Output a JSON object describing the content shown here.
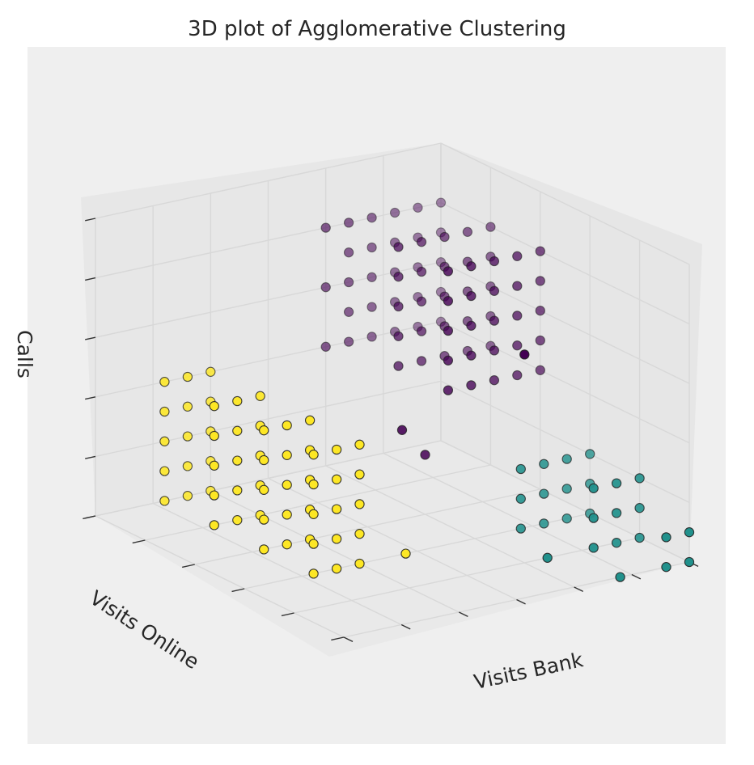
{
  "chart_data": {
    "type": "scatter",
    "projection": "3d",
    "title": "3D plot of Agglomerative Clustering",
    "xlabel": "Visits Bank",
    "ylabel": "Visits Online",
    "zlabel": "Calls",
    "xlim": [
      0,
      5
    ],
    "ylim": [
      0,
      15
    ],
    "zlim": [
      0,
      10
    ],
    "grid": true,
    "tick_labels_visible": false,
    "colormap": "viridis",
    "colors": {
      "cluster_0": "#440154",
      "cluster_1": "#21918c",
      "cluster_2": "#fde725",
      "background": "#efefef",
      "pane_floor": "#e9e9e9",
      "pane_back": "#e7e7e7",
      "grid": "#d8d8d8"
    },
    "series": [
      {
        "cluster": 0,
        "points": [
          [
            0,
            0,
            4
          ],
          [
            0,
            0,
            5
          ],
          [
            0,
            0,
            6
          ],
          [
            0,
            0,
            7
          ],
          [
            0,
            0,
            8
          ],
          [
            0,
            1,
            4
          ],
          [
            0,
            1,
            5
          ],
          [
            0,
            1,
            6
          ],
          [
            0,
            1,
            7
          ],
          [
            0,
            1,
            8
          ],
          [
            0,
            2,
            4
          ],
          [
            0,
            2,
            5
          ],
          [
            0,
            2,
            6
          ],
          [
            0,
            2,
            7
          ],
          [
            0,
            2,
            8
          ],
          [
            0,
            3,
            4
          ],
          [
            0,
            3,
            5
          ],
          [
            0,
            3,
            6
          ],
          [
            0,
            3,
            7
          ],
          [
            0,
            3,
            8
          ],
          [
            0,
            4,
            4
          ],
          [
            0,
            4,
            5
          ],
          [
            0,
            4,
            6
          ],
          [
            0,
            4,
            7
          ],
          [
            0,
            4,
            8
          ],
          [
            0,
            5,
            4
          ],
          [
            0,
            5,
            6
          ],
          [
            0,
            5,
            8
          ],
          [
            1,
            0,
            4
          ],
          [
            1,
            0,
            5
          ],
          [
            1,
            0,
            6
          ],
          [
            1,
            0,
            7
          ],
          [
            1,
            0,
            8
          ],
          [
            1,
            1,
            4
          ],
          [
            1,
            1,
            5
          ],
          [
            1,
            1,
            6
          ],
          [
            1,
            1,
            7
          ],
          [
            1,
            1,
            8
          ],
          [
            1,
            2,
            4
          ],
          [
            1,
            2,
            5
          ],
          [
            1,
            2,
            6
          ],
          [
            1,
            2,
            7
          ],
          [
            1,
            2,
            8
          ],
          [
            1,
            3,
            4
          ],
          [
            1,
            3,
            5
          ],
          [
            1,
            3,
            6
          ],
          [
            1,
            3,
            7
          ],
          [
            1,
            3,
            8
          ],
          [
            1,
            4,
            4
          ],
          [
            1,
            4,
            5
          ],
          [
            1,
            4,
            6
          ],
          [
            1,
            4,
            7
          ],
          [
            1,
            4,
            8
          ],
          [
            2,
            0,
            4
          ],
          [
            2,
            0,
            5
          ],
          [
            2,
            0,
            6
          ],
          [
            2,
            0,
            7
          ],
          [
            2,
            0,
            8
          ],
          [
            2,
            1,
            4
          ],
          [
            2,
            1,
            5
          ],
          [
            2,
            1,
            6
          ],
          [
            2,
            1,
            7
          ],
          [
            2,
            1,
            8
          ],
          [
            2,
            2,
            4
          ],
          [
            2,
            2,
            5
          ],
          [
            2,
            2,
            6
          ],
          [
            2,
            2,
            7
          ],
          [
            2,
            2,
            8
          ],
          [
            2,
            3,
            4
          ],
          [
            2,
            3,
            5
          ],
          [
            2,
            3,
            6
          ],
          [
            2,
            3,
            7
          ],
          [
            2,
            3,
            8
          ],
          [
            2,
            4,
            4
          ],
          [
            2,
            4,
            5
          ],
          [
            2,
            4,
            6
          ],
          [
            2,
            4,
            7
          ],
          [
            2,
            4,
            8
          ],
          [
            2,
            5,
            2
          ],
          [
            2,
            6,
            3
          ],
          [
            4,
            5,
            7
          ]
        ]
      },
      {
        "cluster": 1,
        "points": [
          [
            3,
            0,
            0
          ],
          [
            3,
            0,
            1
          ],
          [
            3,
            0,
            2
          ],
          [
            3,
            1,
            0
          ],
          [
            3,
            1,
            1
          ],
          [
            3,
            1,
            2
          ],
          [
            3,
            2,
            0
          ],
          [
            3,
            2,
            1
          ],
          [
            3,
            2,
            2
          ],
          [
            3,
            3,
            0
          ],
          [
            3,
            3,
            1
          ],
          [
            3,
            3,
            2
          ],
          [
            4,
            0,
            0
          ],
          [
            4,
            0,
            1
          ],
          [
            4,
            0,
            2
          ],
          [
            4,
            1,
            0
          ],
          [
            4,
            1,
            1
          ],
          [
            4,
            1,
            2
          ],
          [
            4,
            2,
            0
          ],
          [
            4,
            2,
            1
          ],
          [
            4,
            2,
            2
          ],
          [
            5,
            0,
            0
          ],
          [
            5,
            0,
            1
          ],
          [
            5,
            1,
            0
          ],
          [
            5,
            1,
            1
          ],
          [
            4,
            4,
            0
          ],
          [
            5,
            3,
            0
          ]
        ]
      },
      {
        "cluster": 2,
        "points": [
          [
            0,
            10,
            0
          ],
          [
            0,
            10,
            1
          ],
          [
            0,
            10,
            2
          ],
          [
            0,
            10,
            3
          ],
          [
            0,
            10,
            4
          ],
          [
            0,
            11,
            0
          ],
          [
            0,
            11,
            1
          ],
          [
            0,
            11,
            2
          ],
          [
            0,
            11,
            3
          ],
          [
            0,
            11,
            4
          ],
          [
            0,
            12,
            0
          ],
          [
            0,
            12,
            1
          ],
          [
            0,
            12,
            2
          ],
          [
            0,
            12,
            3
          ],
          [
            0,
            12,
            4
          ],
          [
            1,
            10,
            0
          ],
          [
            1,
            10,
            1
          ],
          [
            1,
            10,
            2
          ],
          [
            1,
            10,
            3
          ],
          [
            1,
            10,
            4
          ],
          [
            1,
            11,
            0
          ],
          [
            1,
            11,
            1
          ],
          [
            1,
            11,
            2
          ],
          [
            1,
            11,
            3
          ],
          [
            1,
            11,
            4
          ],
          [
            1,
            12,
            0
          ],
          [
            1,
            12,
            1
          ],
          [
            1,
            12,
            2
          ],
          [
            1,
            12,
            3
          ],
          [
            1,
            12,
            4
          ],
          [
            2,
            10,
            0
          ],
          [
            2,
            10,
            1
          ],
          [
            2,
            10,
            2
          ],
          [
            2,
            10,
            3
          ],
          [
            2,
            10,
            4
          ],
          [
            2,
            11,
            0
          ],
          [
            2,
            11,
            1
          ],
          [
            2,
            11,
            2
          ],
          [
            2,
            11,
            3
          ],
          [
            2,
            11,
            4
          ],
          [
            2,
            12,
            0
          ],
          [
            2,
            12,
            1
          ],
          [
            2,
            12,
            2
          ],
          [
            2,
            12,
            3
          ],
          [
            2,
            12,
            4
          ],
          [
            3,
            10,
            0
          ],
          [
            3,
            10,
            1
          ],
          [
            3,
            10,
            2
          ],
          [
            3,
            10,
            3
          ],
          [
            3,
            10,
            4
          ],
          [
            3,
            11,
            0
          ],
          [
            3,
            11,
            1
          ],
          [
            3,
            11,
            2
          ],
          [
            3,
            11,
            3
          ],
          [
            3,
            11,
            4
          ],
          [
            3,
            12,
            0
          ],
          [
            3,
            12,
            1
          ],
          [
            3,
            12,
            2
          ],
          [
            3,
            12,
            3
          ],
          [
            3,
            12,
            4
          ],
          [
            3,
            8,
            0
          ]
        ]
      }
    ]
  }
}
